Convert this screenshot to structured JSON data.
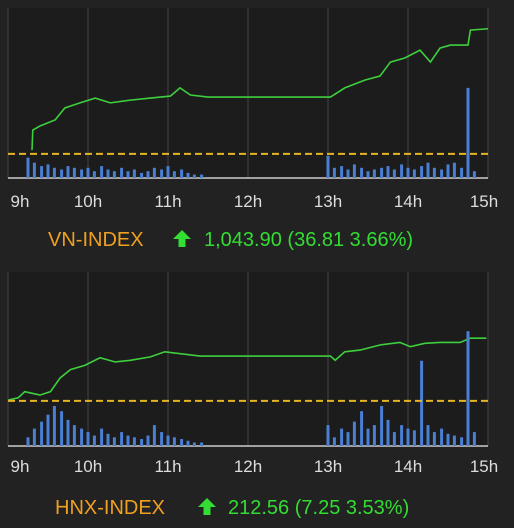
{
  "chart_data": [
    {
      "type": "line",
      "title": "VN-INDEX",
      "subtitle": "1,043.90 (36.81 3.66%)",
      "xlim": [
        9,
        15
      ],
      "xticks": [
        {
          "value": 9,
          "label": "9h"
        },
        {
          "value": 10,
          "label": "10h"
        },
        {
          "value": 11,
          "label": "11h"
        },
        {
          "value": 12,
          "label": "12h"
        },
        {
          "value": 13,
          "label": "13h"
        },
        {
          "value": 14,
          "label": "14h"
        },
        {
          "value": 15,
          "label": "15h"
        }
      ],
      "ylim": [
        1000,
        1050
      ],
      "y2lim": [
        0,
        100
      ],
      "reference_value": 1007.09,
      "reference_color": "#e6b422",
      "grid": true,
      "series": [
        {
          "color": "#3ecf3e",
          "x": [
            9.3,
            9.31,
            9.4,
            9.59,
            9.71,
            9.9,
            10.09,
            10.28,
            10.53,
            10.78,
            11.03,
            11.15,
            11.28,
            11.5,
            13.03,
            13.21,
            13.46,
            13.65,
            13.78,
            13.96,
            14.15,
            14.28,
            14.4,
            14.53,
            14.75,
            14.78,
            15
          ],
          "values": [
            1008.2,
            1014.1,
            1015.3,
            1017.1,
            1020.6,
            1022.1,
            1023.5,
            1022.1,
            1022.9,
            1023.5,
            1024.1,
            1026.5,
            1024.4,
            1023.8,
            1023.8,
            1026.5,
            1028.8,
            1030,
            1034.1,
            1035.3,
            1037.6,
            1034.1,
            1038.2,
            1039.1,
            1039.1,
            1043.5,
            1043.9
          ]
        },
        {
          "type": "bar",
          "axis": "y2",
          "color": "#4a7fd4",
          "x": [
            9.25,
            9.33,
            9.42,
            9.5,
            9.58,
            9.67,
            9.75,
            9.83,
            9.92,
            10,
            10.08,
            10.17,
            10.25,
            10.33,
            10.42,
            10.5,
            10.58,
            10.67,
            10.75,
            10.83,
            10.92,
            11,
            11.08,
            11.17,
            11.25,
            11.33,
            11.42,
            13,
            13.08,
            13.17,
            13.25,
            13.33,
            13.42,
            13.5,
            13.58,
            13.67,
            13.75,
            13.83,
            13.92,
            14,
            14.08,
            14.17,
            14.25,
            14.33,
            14.42,
            14.5,
            14.58,
            14.67,
            14.75,
            14.83
          ],
          "values": [
            12,
            9,
            7,
            8,
            6,
            5,
            7,
            6,
            5,
            6,
            4,
            7,
            5,
            4,
            6,
            4,
            5,
            3,
            4,
            6,
            5,
            7,
            4,
            5,
            3,
            2,
            2,
            13,
            6,
            7,
            5,
            8,
            6,
            4,
            5,
            6,
            7,
            5,
            8,
            6,
            5,
            7,
            9,
            6,
            5,
            8,
            9,
            6,
            53,
            4
          ]
        }
      ]
    },
    {
      "type": "line",
      "title": "HNX-INDEX",
      "subtitle": "212.56 (7.25 3.53%)",
      "xlim": [
        9,
        15
      ],
      "xticks": [
        {
          "value": 9,
          "label": "9h"
        },
        {
          "value": 10,
          "label": "10h"
        },
        {
          "value": 11,
          "label": "11h"
        },
        {
          "value": 12,
          "label": "12h"
        },
        {
          "value": 13,
          "label": "13h"
        },
        {
          "value": 14,
          "label": "14h"
        },
        {
          "value": 15,
          "label": "15h"
        }
      ],
      "ylim": [
        200,
        220.5
      ],
      "y2lim": [
        0,
        100
      ],
      "reference_value": 205.31,
      "reference_color": "#e6b422",
      "grid": true,
      "series": [
        {
          "color": "#3ecf3e",
          "x": [
            9,
            9.13,
            9.21,
            9.4,
            9.53,
            9.65,
            9.78,
            9.96,
            10.15,
            10.34,
            10.53,
            10.78,
            10.96,
            11.4,
            13.03,
            13.09,
            13.21,
            13.4,
            13.65,
            13.9,
            14.03,
            14.21,
            14.4,
            14.65,
            14.78,
            14.98
          ],
          "values": [
            205.4,
            205.7,
            206.4,
            206,
            206.4,
            208,
            209,
            209.5,
            210.4,
            209.9,
            210.1,
            210.5,
            211.1,
            210.6,
            210.6,
            210.1,
            211.1,
            211.3,
            211.9,
            212.2,
            211.7,
            212.1,
            212.2,
            212.2,
            212.7,
            212.7
          ]
        },
        {
          "type": "bar",
          "axis": "y2",
          "color": "#4a7fd4",
          "x": [
            9.25,
            9.33,
            9.42,
            9.5,
            9.58,
            9.67,
            9.75,
            9.83,
            9.92,
            10,
            10.08,
            10.17,
            10.25,
            10.33,
            10.42,
            10.5,
            10.58,
            10.67,
            10.75,
            10.83,
            10.92,
            11,
            11.08,
            11.17,
            11.25,
            11.33,
            11.42,
            13,
            13.08,
            13.17,
            13.25,
            13.33,
            13.42,
            13.5,
            13.58,
            13.67,
            13.75,
            13.83,
            13.92,
            14,
            14.08,
            14.17,
            14.25,
            14.33,
            14.42,
            14.5,
            14.58,
            14.67,
            14.75,
            14.83
          ],
          "values": [
            5,
            10,
            14,
            18,
            23,
            20,
            15,
            12,
            10,
            8,
            6,
            10,
            7,
            5,
            8,
            6,
            5,
            4,
            6,
            12,
            8,
            6,
            5,
            4,
            3,
            2,
            2,
            12,
            5,
            10,
            8,
            14,
            20,
            10,
            12,
            23,
            15,
            8,
            12,
            10,
            9,
            49,
            12,
            8,
            10,
            7,
            6,
            5,
            66,
            8
          ]
        }
      ]
    }
  ]
}
